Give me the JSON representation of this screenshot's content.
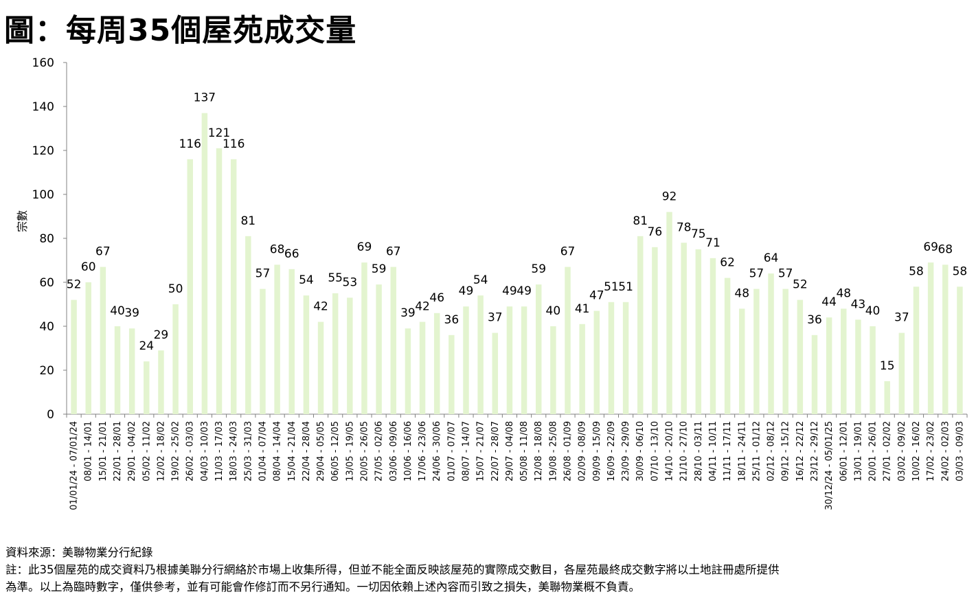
{
  "title": "圖：每周35個屋苑成交量",
  "footer": {
    "source": "資料來源：美聯物業分行紀錄",
    "note_line1": "註：此35個屋苑的成交資料乃根據美聯分行網絡於市場上收集所得，但並不能全面反映該屋苑的實際成交數目，各屋苑最終成交數字將以土地註冊處所提供",
    "note_line2": "為準。以上為臨時數字，僅供參考，並有可能會作修訂而不另行通知。一切因依賴上述內容而引致之損失，美聯物業概不負責。"
  },
  "colors": {
    "bar": "#e3f4cf",
    "axis": "#808080"
  },
  "chart_data": {
    "type": "bar",
    "title": "圖：每周35個屋苑成交量",
    "xlabel": "",
    "ylabel": "宗數",
    "ylim": [
      0,
      160
    ],
    "yticks": [
      0,
      20,
      40,
      60,
      80,
      100,
      120,
      140,
      160
    ],
    "grid": false,
    "legend": "none",
    "categories": [
      "01/01/24 - 07/01/24",
      "08/01 - 14/01",
      "15/01 - 21/01",
      "22/01 - 28/01",
      "29/01 - 04/02",
      "05/02 - 11/02",
      "12/02 - 18/02",
      "19/02 - 25/02",
      "26/02 - 03/03",
      "04/03 - 10/03",
      "11/03 - 17/03",
      "18/03 - 24/03",
      "25/03 - 31/03",
      "01/04 - 07/04",
      "08/04 - 14/04",
      "15/04 - 21/04",
      "22/04 - 28/04",
      "29/04 - 05/05",
      "06/05 - 12/05",
      "13/05 - 19/05",
      "20/05 - 26/05",
      "27/05 - 02/06",
      "03/06 - 09/06",
      "10/06 - 16/06",
      "17/06 - 23/06",
      "24/06 - 30/06",
      "01/07 - 07/07",
      "08/07 - 14/07",
      "15/07 - 21/07",
      "22/07 - 28/07",
      "29/07 - 04/08",
      "05/08 - 11/08",
      "12/08 - 18/08",
      "19/08 - 25/08",
      "26/08 - 01/09",
      "02/09 - 08/09",
      "09/09 - 15/09",
      "16/09 - 22/09",
      "23/09 - 29/09",
      "30/09 - 06/10",
      "07/10 - 13/10",
      "14/10 - 20/10",
      "21/10 - 27/10",
      "28/10 - 03/11",
      "04/11 - 10/11",
      "11/11 - 17/11",
      "18/11 - 24/11",
      "25/11 - 01/12",
      "02/12 - 08/12",
      "09/12 - 15/12",
      "16/12 - 22/12",
      "23/12 - 29/12",
      "30/12/24 - 05/01/25",
      "06/01 - 12/01",
      "13/01 - 19/01",
      "20/01 - 26/01",
      "27/01 - 02/02",
      "03/02 - 09/02",
      "10/02 - 16/02",
      "17/02 - 23/02",
      "24/02 - 02/03",
      "03/03 - 09/03"
    ],
    "values": [
      52,
      60,
      67,
      40,
      39,
      24,
      29,
      50,
      116,
      137,
      121,
      116,
      81,
      57,
      68,
      66,
      54,
      42,
      55,
      53,
      69,
      59,
      67,
      39,
      42,
      46,
      36,
      49,
      54,
      37,
      49,
      49,
      59,
      40,
      67,
      41,
      47,
      51,
      51,
      81,
      76,
      92,
      78,
      75,
      71,
      62,
      48,
      57,
      64,
      57,
      52,
      36,
      44,
      48,
      43,
      40,
      15,
      37,
      58,
      69,
      68,
      58
    ]
  }
}
